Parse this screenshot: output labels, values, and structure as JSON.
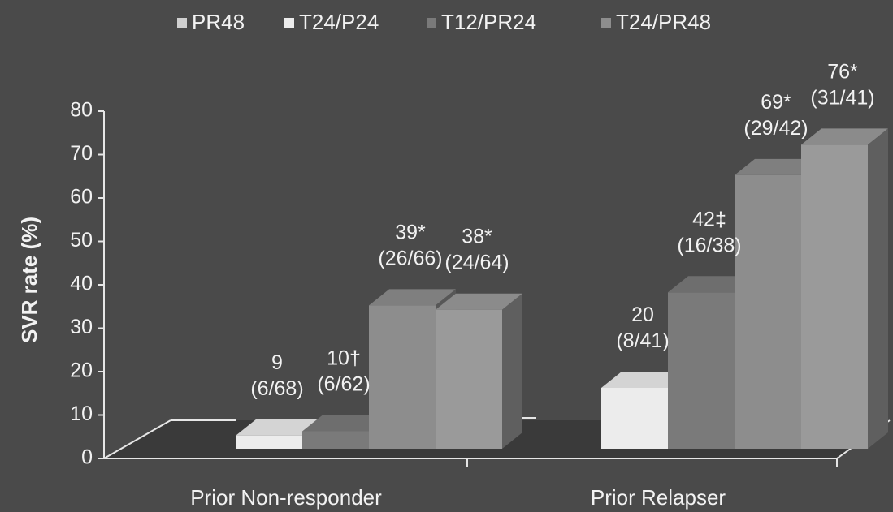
{
  "chart_data": {
    "type": "bar",
    "title": "",
    "ylabel": "SVR rate (%)",
    "xlabel": "",
    "ylim": [
      0,
      80
    ],
    "yticks": [
      "0",
      "10",
      "20",
      "30",
      "40",
      "50",
      "60",
      "70",
      "80"
    ],
    "categories": [
      "Prior Non-responder",
      "Prior Relapser"
    ],
    "legend_position": "top",
    "grid": false,
    "series": [
      {
        "name": "PR48",
        "color": "#d0d0d0",
        "values": [
          null,
          null
        ],
        "labels": [
          "",
          ""
        ],
        "sublabels": [
          "",
          ""
        ]
      },
      {
        "name": "T24/P24",
        "color": "#ececec",
        "values": [
          9,
          20
        ],
        "labels": [
          "9",
          "20"
        ],
        "sublabels": [
          "(6/68)",
          "(8/41)"
        ]
      },
      {
        "name": "T12/PR24",
        "color": "#7a7a7a",
        "values": [
          10,
          42
        ],
        "labels": [
          "10†",
          "42‡"
        ],
        "sublabels": [
          "(6/62)",
          "(16/38)"
        ]
      },
      {
        "name": "T24/PR48",
        "color": "#8d8d8d",
        "values": [
          39,
          69
        ],
        "labels": [
          "39*",
          "69*"
        ],
        "sublabels": [
          "(26/66)",
          "(29/42)"
        ]
      },
      {
        "name": "",
        "color": "#9a9a9a",
        "values": [
          38,
          76
        ],
        "labels": [
          "38*",
          "76*"
        ],
        "sublabels": [
          "(24/64)",
          "(31/41)"
        ]
      }
    ]
  }
}
